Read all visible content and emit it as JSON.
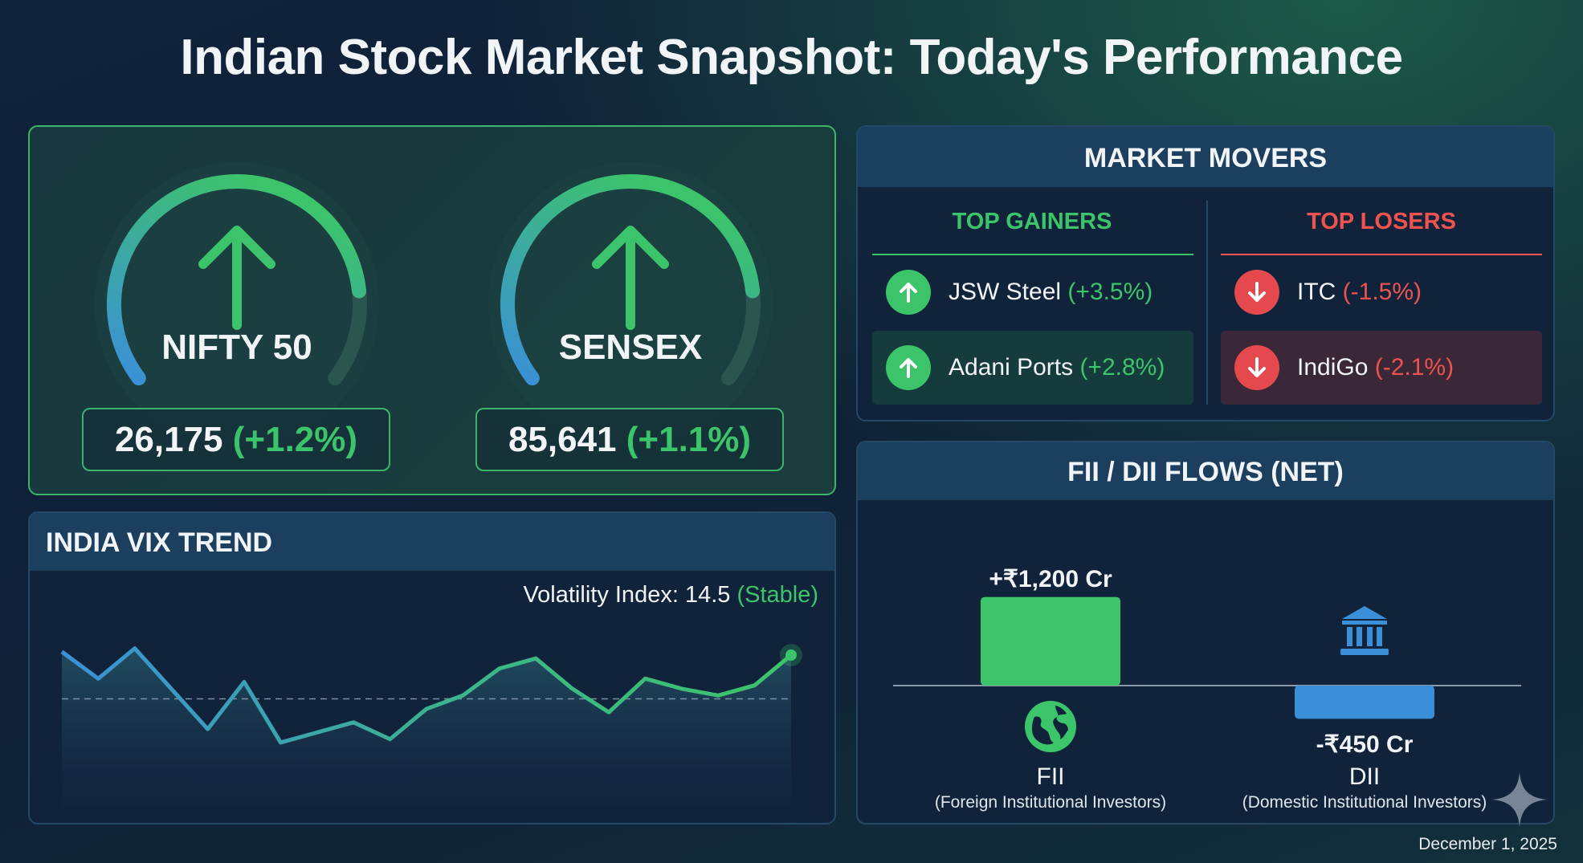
{
  "title": "Indian Stock Market Snapshot: Today's Performance",
  "indices": [
    {
      "name": "NIFTY 50",
      "value": "26,175",
      "change": "(+1.2%)",
      "gauge_fill": 0.83,
      "direction": "up"
    },
    {
      "name": "SENSEX",
      "value": "85,641",
      "change": "(+1.1%)",
      "gauge_fill": 0.83,
      "direction": "up"
    }
  ],
  "vix": {
    "title": "INDIA VIX TREND",
    "label": "Volatility Index: 14.5",
    "status": "(Stable)",
    "chart_data": {
      "type": "area",
      "values": [
        14.6,
        13.8,
        14.7,
        13.5,
        12.3,
        13.7,
        11.9,
        12.2,
        12.5,
        12.0,
        12.9,
        13.3,
        14.1,
        14.4,
        13.5,
        12.8,
        13.8,
        13.5,
        13.3,
        13.6,
        14.5
      ],
      "reference_line": 13.2,
      "axes": "none",
      "grid": false
    }
  },
  "movers": {
    "title": "MARKET MOVERS",
    "gainers_label": "TOP GAINERS",
    "losers_label": "TOP LOSERS",
    "gainers": [
      {
        "name": "JSW Steel",
        "change": "(+3.5%)"
      },
      {
        "name": "Adani Ports",
        "change": "(+2.8%)"
      }
    ],
    "losers": [
      {
        "name": "ITC",
        "change": "(-1.5%)"
      },
      {
        "name": "IndiGo",
        "change": "(-2.1%)"
      }
    ]
  },
  "flows": {
    "title": "FII / DII FLOWS (NET)",
    "chart_data": {
      "type": "bar",
      "categories": [
        "FII",
        "DII"
      ],
      "values": [
        1200,
        -450
      ],
      "units": "Cr"
    },
    "fii": {
      "value_label": "+₹1,200 Cr",
      "name": "FII",
      "desc": "(Foreign Institutional Investors)",
      "icon": "globe-icon"
    },
    "dii": {
      "value_label": "-₹450 Cr",
      "name": "DII",
      "desc": "(Domestic Institutional Investors)",
      "icon": "bank-icon"
    }
  },
  "date": "December 1, 2025",
  "colors": {
    "green": "#3cc46a",
    "red": "#ef5350",
    "blue": "#3b8fd9"
  }
}
